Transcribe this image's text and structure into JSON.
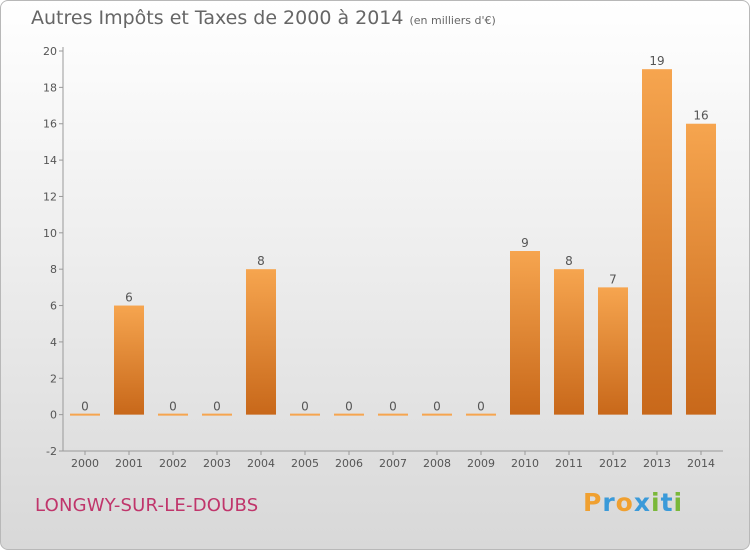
{
  "header": {
    "title": "Autres Impôts et Taxes de 2000 à 2014",
    "subtitle": "(en milliers d'€)"
  },
  "footer": {
    "place": "LONGWY-SUR-LE-DOUBS",
    "logo_letters": [
      "P",
      "r",
      "o",
      "x",
      "i",
      "t",
      "i"
    ],
    "logo_colors": [
      "#f0a030",
      "#3a9ad9",
      "#f0a030",
      "#3a9ad9",
      "#7ab83a",
      "#3a9ad9",
      "#7ab83a"
    ]
  },
  "chart_data": {
    "type": "bar",
    "title": "Autres Impôts et Taxes de 2000 à 2014",
    "subtitle": "(en milliers d'€)",
    "categories": [
      "2000",
      "2001",
      "2002",
      "2003",
      "2004",
      "2005",
      "2006",
      "2007",
      "2008",
      "2009",
      "2010",
      "2011",
      "2012",
      "2013",
      "2014"
    ],
    "values": [
      0,
      6,
      0,
      0,
      8,
      0,
      0,
      0,
      0,
      0,
      9,
      8,
      7,
      19,
      16
    ],
    "ylim": [
      -2,
      20
    ],
    "yticks": [
      -2,
      0,
      2,
      4,
      6,
      8,
      10,
      12,
      14,
      16,
      18,
      20
    ],
    "xlabel": "",
    "ylabel": "",
    "grid": false,
    "legend": "none",
    "bar_color_light": "#f6a54f",
    "bar_color_dark": "#c8681a"
  }
}
